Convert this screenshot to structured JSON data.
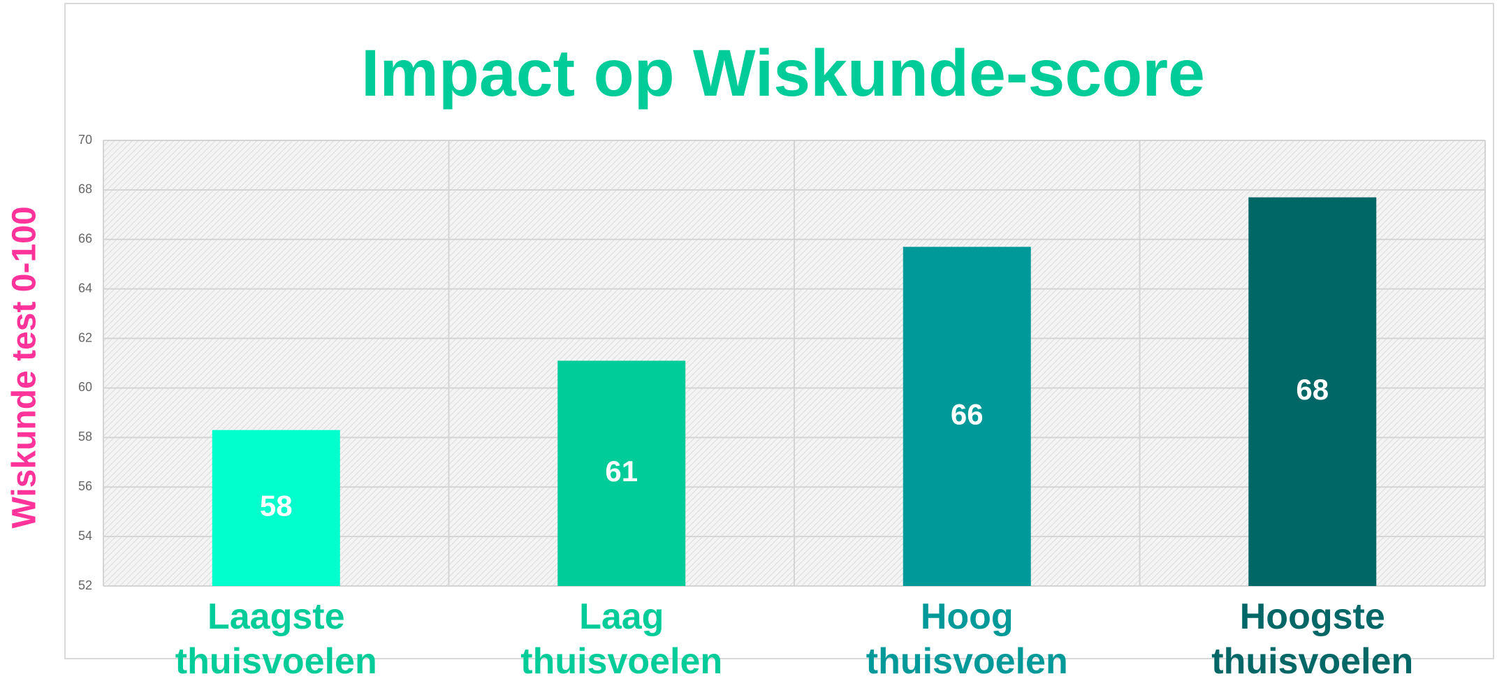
{
  "chart_data": {
    "type": "bar",
    "title": "Impact op Wiskunde-score",
    "y_label": "Wiskunde test 0-100",
    "categories": [
      "Laagste thuisvoelen",
      "Laag thuisvoelen",
      "Hoog thuisvoelen",
      "Hoogste thuisvoelen"
    ],
    "values": [
      58.3,
      61.1,
      65.7,
      67.7
    ],
    "value_labels": [
      "58",
      "61",
      "66",
      "68"
    ],
    "colors": [
      "#00ffcc",
      "#00cc99",
      "#009999",
      "#006666"
    ],
    "ylim": [
      52,
      70
    ],
    "yticks": [
      52,
      54,
      56,
      58,
      60,
      62,
      64,
      66,
      68,
      70
    ],
    "grid": true
  }
}
